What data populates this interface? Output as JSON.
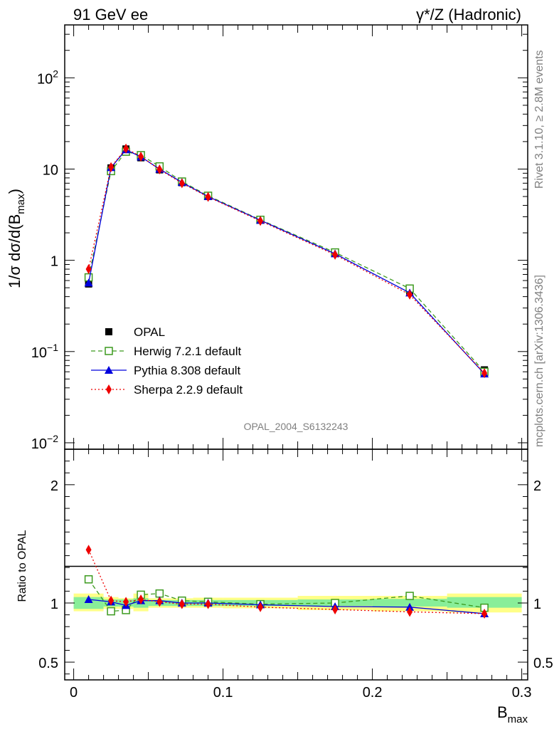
{
  "header": {
    "left": "91 GeV ee",
    "right": "γ*/Z (Hadronic)"
  },
  "side_text": {
    "rivet": "Rivet 3.1.10, ≥ 2.8M events",
    "mcplots": "mcplots.cern.ch [arXiv:1306.3436]"
  },
  "analysis_label": "OPAL_2004_S6132243",
  "chart_data": [
    {
      "type": "line",
      "panel": "main",
      "y_scale": "log",
      "xlim": [
        -0.006,
        0.304
      ],
      "ylim": [
        0.0085,
        380
      ],
      "ylabel": "1/σ dσ/d(B",
      "ylabel_sub": "max",
      "ylabel_close": ")",
      "y_ticks": [
        {
          "value": 0.01,
          "base": "10",
          "exp": "−2"
        },
        {
          "value": 0.1,
          "base": "10",
          "exp": "−1"
        },
        {
          "value": 1,
          "base": "1",
          "exp": ""
        },
        {
          "value": 10,
          "base": "10",
          "exp": ""
        },
        {
          "value": 100,
          "base": "10",
          "exp": "2"
        }
      ],
      "legend_position": "center-left",
      "series": [
        {
          "name": "OPAL",
          "style": "data",
          "color": "#000000",
          "marker": "square-filled",
          "x": [
            0.01,
            0.025,
            0.035,
            0.045,
            0.0575,
            0.0725,
            0.09,
            0.125,
            0.175,
            0.225,
            0.275
          ],
          "y": [
            0.55,
            10.3,
            16.6,
            13.3,
            9.8,
            7.1,
            5.0,
            2.8,
            1.22,
            0.46,
            0.063
          ]
        },
        {
          "name": "Herwig 7.2.1 default",
          "style": "dashed",
          "color": "#3c9a1e",
          "marker": "square-open",
          "x": [
            0.01,
            0.025,
            0.035,
            0.045,
            0.0575,
            0.0725,
            0.09,
            0.125,
            0.175,
            0.225,
            0.275
          ],
          "y": [
            0.65,
            9.5,
            15.5,
            14.2,
            10.7,
            7.3,
            5.1,
            2.78,
            1.22,
            0.49,
            0.06
          ]
        },
        {
          "name": "Pythia 8.308 default",
          "style": "solid",
          "color": "#0000dd",
          "marker": "triangle",
          "x": [
            0.01,
            0.025,
            0.035,
            0.045,
            0.0575,
            0.0725,
            0.09,
            0.125,
            0.175,
            0.225,
            0.275
          ],
          "y": [
            0.565,
            10.4,
            16.3,
            13.6,
            10.0,
            7.15,
            5.0,
            2.75,
            1.18,
            0.44,
            0.057
          ]
        },
        {
          "name": "Sherpa 2.2.9 default",
          "style": "dotted",
          "color": "#ee0000",
          "marker": "diamond",
          "x": [
            0.01,
            0.025,
            0.035,
            0.045,
            0.0575,
            0.0725,
            0.09,
            0.125,
            0.175,
            0.225,
            0.275
          ],
          "y": [
            0.8,
            10.5,
            16.8,
            13.7,
            9.9,
            7.0,
            4.95,
            2.7,
            1.15,
            0.42,
            0.058
          ]
        }
      ]
    },
    {
      "type": "line",
      "panel": "ratio",
      "y_scale": "linear",
      "xlim": [
        -0.006,
        0.304
      ],
      "ylim": [
        0.35,
        2.3
      ],
      "xlabel": "B",
      "xlabel_sub": "max",
      "ylabel": "Ratio to OPAL",
      "x_ticks": [
        {
          "value": 0,
          "label": "0"
        },
        {
          "value": 0.1,
          "label": "0.1"
        },
        {
          "value": 0.2,
          "label": "0.2"
        },
        {
          "value": 0.3,
          "label": "0.3"
        }
      ],
      "y_ticks": [
        {
          "value": 0.5,
          "label": "0.5"
        },
        {
          "value": 1,
          "label": "1"
        },
        {
          "value": 2,
          "label": "2"
        }
      ],
      "bands": [
        {
          "x0": 0.0,
          "x1": 0.02,
          "stat_lo": 0.95,
          "stat_hi": 1.05,
          "tot_lo": 0.93,
          "tot_hi": 1.08
        },
        {
          "x0": 0.02,
          "x1": 0.03,
          "stat_lo": 0.97,
          "stat_hi": 1.03,
          "tot_lo": 0.95,
          "tot_hi": 1.05
        },
        {
          "x0": 0.03,
          "x1": 0.04,
          "stat_lo": 0.97,
          "stat_hi": 1.03,
          "tot_lo": 0.95,
          "tot_hi": 1.04
        },
        {
          "x0": 0.04,
          "x1": 0.05,
          "stat_lo": 0.96,
          "stat_hi": 1.04,
          "tot_lo": 0.93,
          "tot_hi": 1.08
        },
        {
          "x0": 0.05,
          "x1": 0.065,
          "stat_lo": 0.975,
          "stat_hi": 1.025,
          "tot_lo": 0.96,
          "tot_hi": 1.04
        },
        {
          "x0": 0.065,
          "x1": 0.08,
          "stat_lo": 0.975,
          "stat_hi": 1.025,
          "tot_lo": 0.96,
          "tot_hi": 1.04
        },
        {
          "x0": 0.08,
          "x1": 0.1,
          "stat_lo": 0.975,
          "stat_hi": 1.025,
          "tot_lo": 0.96,
          "tot_hi": 1.045
        },
        {
          "x0": 0.1,
          "x1": 0.15,
          "stat_lo": 0.975,
          "stat_hi": 1.025,
          "tot_lo": 0.955,
          "tot_hi": 1.045
        },
        {
          "x0": 0.15,
          "x1": 0.2,
          "stat_lo": 0.975,
          "stat_hi": 1.03,
          "tot_lo": 0.94,
          "tot_hi": 1.06
        },
        {
          "x0": 0.2,
          "x1": 0.25,
          "stat_lo": 0.97,
          "stat_hi": 1.035,
          "tot_lo": 0.93,
          "tot_hi": 1.06
        },
        {
          "x0": 0.25,
          "x1": 0.3,
          "stat_lo": 0.96,
          "stat_hi": 1.05,
          "tot_lo": 0.92,
          "tot_hi": 1.08
        }
      ],
      "series": [
        {
          "name": "Herwig 7.2.1 default",
          "style": "dashed",
          "color": "#3c9a1e",
          "marker": "square-open",
          "x": [
            0.01,
            0.025,
            0.035,
            0.045,
            0.0575,
            0.0725,
            0.09,
            0.125,
            0.175,
            0.225,
            0.275
          ],
          "y": [
            1.2,
            0.93,
            0.94,
            1.07,
            1.08,
            1.02,
            1.01,
            0.99,
            1.0,
            1.06,
            0.96
          ]
        },
        {
          "name": "Pythia 8.308 default",
          "style": "solid",
          "color": "#0000dd",
          "marker": "triangle",
          "x": [
            0.01,
            0.025,
            0.035,
            0.045,
            0.0575,
            0.0725,
            0.09,
            0.125,
            0.175,
            0.225,
            0.275
          ],
          "y": [
            1.03,
            1.01,
            0.98,
            1.02,
            1.02,
            1.0,
            1.0,
            0.985,
            0.97,
            0.965,
            0.91
          ]
        },
        {
          "name": "Sherpa 2.2.9 default",
          "style": "dotted",
          "color": "#ee0000",
          "marker": "diamond",
          "x": [
            0.01,
            0.025,
            0.035,
            0.045,
            0.0575,
            0.0725,
            0.09,
            0.125,
            0.175,
            0.225,
            0.275
          ],
          "y": [
            1.45,
            1.02,
            1.01,
            1.03,
            1.01,
            0.99,
            0.99,
            0.965,
            0.945,
            0.925,
            0.91
          ]
        }
      ]
    }
  ]
}
